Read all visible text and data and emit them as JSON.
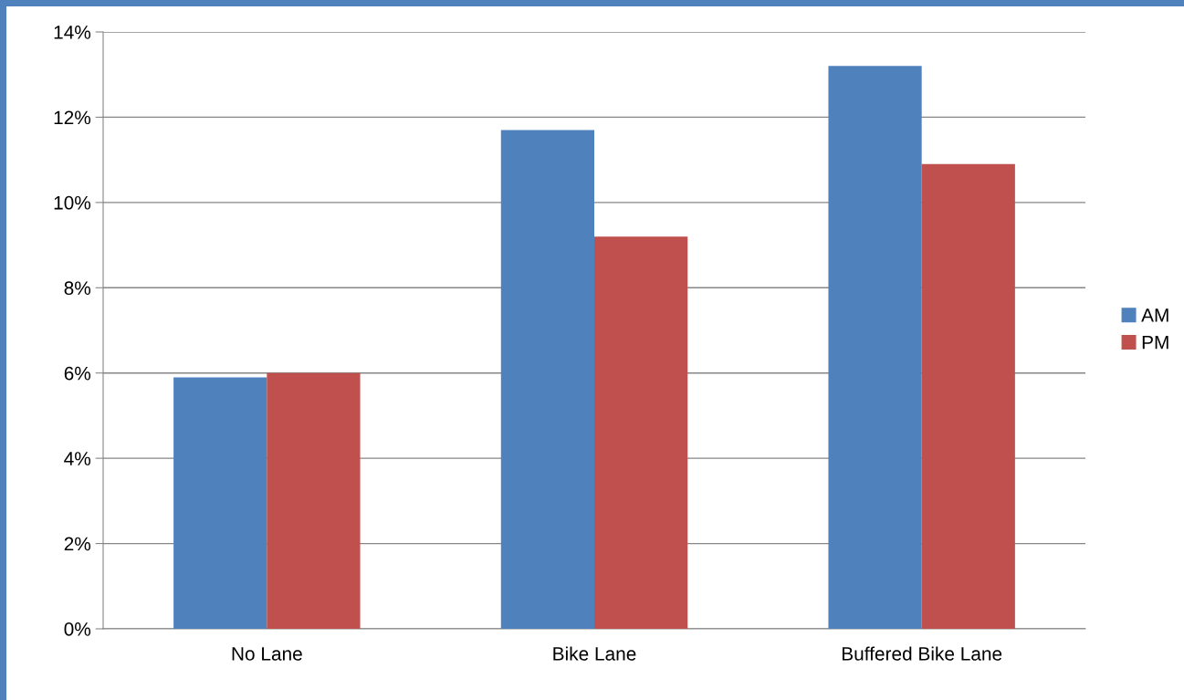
{
  "chart_data": {
    "type": "bar",
    "categories": [
      "No Lane",
      "Bike Lane",
      "Buffered Bike Lane"
    ],
    "series": [
      {
        "name": "AM",
        "color": "#4f81bd",
        "values": [
          5.9,
          11.7,
          13.2
        ]
      },
      {
        "name": "PM",
        "color": "#c0504d",
        "values": [
          6.0,
          9.2,
          10.9
        ]
      }
    ],
    "ylim": [
      0,
      14
    ],
    "yticks": [
      {
        "value": 0,
        "label": "0%"
      },
      {
        "value": 2,
        "label": "2%"
      },
      {
        "value": 4,
        "label": "4%"
      },
      {
        "value": 6,
        "label": "6%"
      },
      {
        "value": 8,
        "label": "8%"
      },
      {
        "value": 10,
        "label": "10%"
      },
      {
        "value": 12,
        "label": "12%"
      },
      {
        "value": 14,
        "label": "14%"
      }
    ],
    "grid": "y",
    "legend": "right"
  }
}
